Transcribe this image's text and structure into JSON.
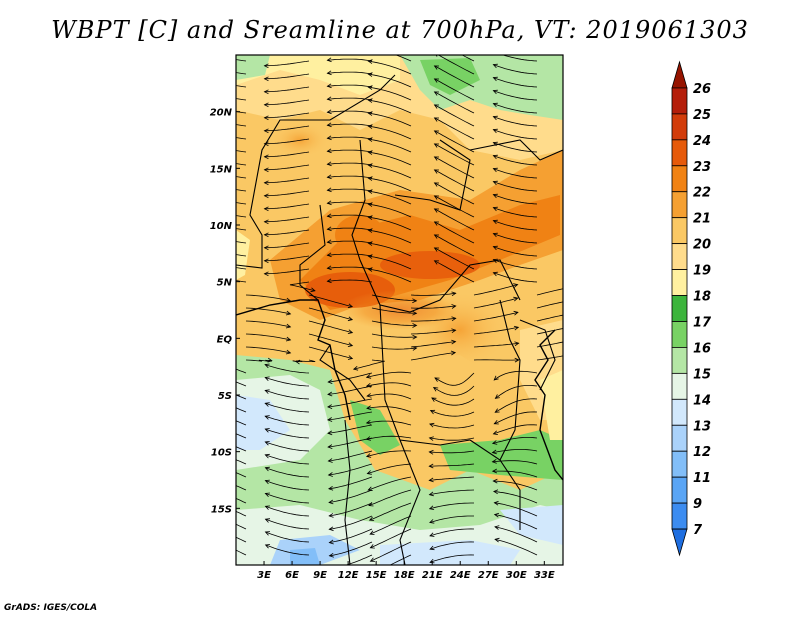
{
  "title": "WBPT [C] and Sreamline at 700hPa, VT: 2019061303",
  "credit": "GrADS: IGES/COLA",
  "map": {
    "lon_range": [
      0,
      35
    ],
    "lat_range": [
      -20,
      25
    ],
    "lon_labels": [
      {
        "value": 3,
        "text": "3E"
      },
      {
        "value": 6,
        "text": "6E"
      },
      {
        "value": 9,
        "text": "9E"
      },
      {
        "value": 12,
        "text": "12E"
      },
      {
        "value": 15,
        "text": "15E"
      },
      {
        "value": 18,
        "text": "18E"
      },
      {
        "value": 21,
        "text": "21E"
      },
      {
        "value": 24,
        "text": "24E"
      },
      {
        "value": 27,
        "text": "27E"
      },
      {
        "value": 30,
        "text": "30E"
      },
      {
        "value": 33,
        "text": "33E"
      }
    ],
    "lat_labels": [
      {
        "value": 20,
        "text": "20N"
      },
      {
        "value": 15,
        "text": "15N"
      },
      {
        "value": 10,
        "text": "10N"
      },
      {
        "value": 5,
        "text": "5N"
      },
      {
        "value": 0,
        "text": "EQ"
      },
      {
        "value": -5,
        "text": "5S"
      },
      {
        "value": -10,
        "text": "10S"
      },
      {
        "value": -15,
        "text": "15S"
      }
    ]
  },
  "colorbar": {
    "labels": [
      "7",
      "9",
      "11",
      "12",
      "13",
      "14",
      "15",
      "16",
      "17",
      "18",
      "19",
      "20",
      "21",
      "22",
      "23",
      "24",
      "25",
      "26"
    ],
    "colors": [
      "#1e6ee0",
      "#3c8cf0",
      "#5aa5f5",
      "#82bef8",
      "#aad2fa",
      "#d2e8fc",
      "#e6f5e6",
      "#b4e6a5",
      "#78d264",
      "#3cb43c",
      "#fff0a0",
      "#ffdc8c",
      "#fac864",
      "#f5a032",
      "#f08214",
      "#e65a0a",
      "#d23c0a",
      "#b41e0a",
      "#961400"
    ]
  }
}
